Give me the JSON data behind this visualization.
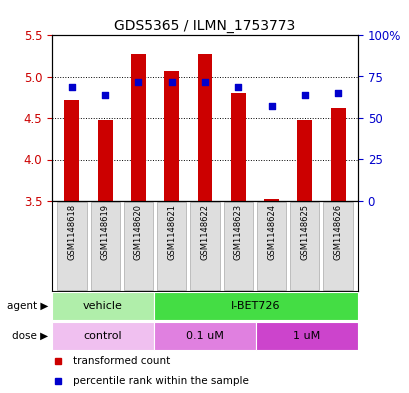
{
  "title": "GDS5365 / ILMN_1753773",
  "samples": [
    "GSM1148618",
    "GSM1148619",
    "GSM1148620",
    "GSM1148621",
    "GSM1148622",
    "GSM1148623",
    "GSM1148624",
    "GSM1148625",
    "GSM1148626"
  ],
  "bar_values": [
    4.72,
    4.47,
    5.27,
    5.07,
    5.27,
    4.8,
    3.52,
    4.47,
    4.62
  ],
  "bar_bottom": 3.5,
  "percentile_values": [
    4.87,
    4.78,
    4.93,
    4.93,
    4.93,
    4.87,
    4.65,
    4.78,
    4.8
  ],
  "ylim": [
    3.5,
    5.5
  ],
  "yticks_left": [
    3.5,
    4.0,
    4.5,
    5.0,
    5.5
  ],
  "yticks_right": [
    0,
    25,
    50,
    75,
    100
  ],
  "bar_color": "#cc0000",
  "percentile_color": "#0000cc",
  "agent_groups": [
    {
      "label": "vehicle",
      "start": 0,
      "end": 3,
      "color": "#b0eeaa"
    },
    {
      "label": "I-BET726",
      "start": 3,
      "end": 9,
      "color": "#44dd44"
    }
  ],
  "dose_groups": [
    {
      "label": "control",
      "start": 0,
      "end": 3,
      "color": "#f0c0f0"
    },
    {
      "label": "0.1 uM",
      "start": 3,
      "end": 6,
      "color": "#e080e0"
    },
    {
      "label": "1 uM",
      "start": 6,
      "end": 9,
      "color": "#cc44cc"
    }
  ],
  "legend_items": [
    {
      "label": "transformed count",
      "color": "#cc0000"
    },
    {
      "label": "percentile rank within the sample",
      "color": "#0000cc"
    }
  ],
  "bar_width": 0.45,
  "sample_box_color": "#dedede",
  "sample_box_edge": "#aaaaaa"
}
